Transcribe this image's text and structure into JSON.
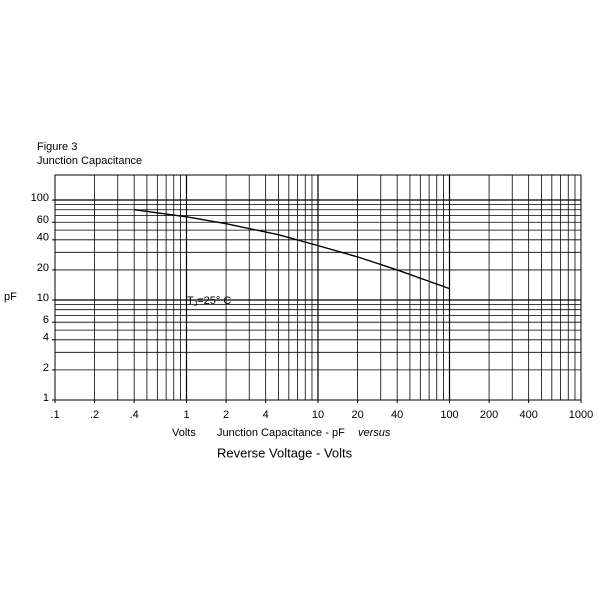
{
  "chart_data": {
    "type": "line",
    "title": "Figure 3",
    "subtitle": "Junction Capacitance",
    "y_label": "pF",
    "annotation": {
      "main": "T",
      "sub": "J",
      "rest": "=25° C"
    },
    "x_notes": [
      "Volts",
      "Junction Capacitance - pF",
      "versus"
    ],
    "x_label": "Reverse Voltage - Volts",
    "x_scale": "log",
    "y_scale": "log",
    "grid": true,
    "xlim": [
      0.1,
      1000
    ],
    "ylim": [
      1,
      178
    ],
    "xticks": [
      {
        "value": 0.1,
        "label": ".1"
      },
      {
        "value": 0.2,
        "label": ".2"
      },
      {
        "value": 0.4,
        "label": ".4"
      },
      1,
      2,
      4,
      10,
      20,
      40,
      100,
      200,
      400,
      1000
    ],
    "yticks": [
      1,
      2,
      4,
      6,
      10,
      20,
      40,
      60,
      100
    ],
    "x": [
      0.4,
      1,
      2,
      5,
      10,
      20,
      40,
      100
    ],
    "series": [
      {
        "color": "#000000",
        "values": [
          80,
          68,
          58,
          45,
          35,
          27,
          20,
          13
        ]
      }
    ]
  }
}
